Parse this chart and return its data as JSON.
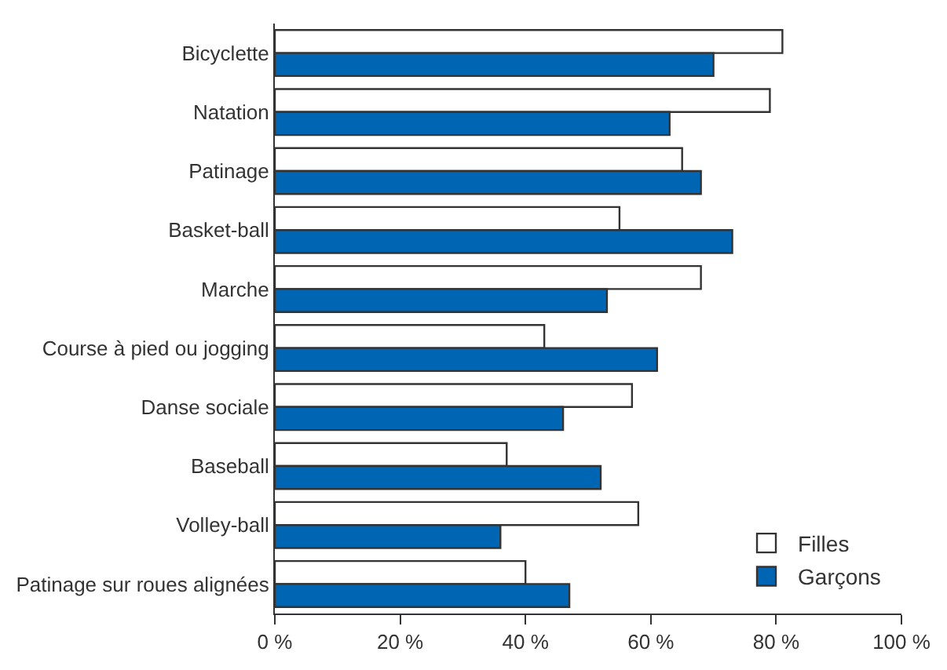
{
  "chart_data": {
    "type": "bar",
    "orientation": "horizontal",
    "categories": [
      "Bicyclette",
      "Natation",
      "Patinage",
      "Basket-ball",
      "Marche",
      "Course à pied ou jogging",
      "Danse sociale",
      "Baseball",
      "Volley-ball",
      "Patinage sur roues alignées"
    ],
    "series": [
      {
        "name": "Filles",
        "color": "#ffffff",
        "values": [
          81,
          79,
          65,
          55,
          68,
          43,
          57,
          37,
          58,
          40
        ]
      },
      {
        "name": "Garçons",
        "color": "#0066b3",
        "values": [
          70,
          63,
          68,
          73,
          53,
          61,
          46,
          52,
          36,
          47
        ]
      }
    ],
    "xlim": [
      0,
      100
    ],
    "xticks": [
      {
        "value": 0,
        "label": "0 %"
      },
      {
        "value": 20,
        "label": "20 %"
      },
      {
        "value": 40,
        "label": "40 %"
      },
      {
        "value": 60,
        "label": "60 %"
      },
      {
        "value": 80,
        "label": "80 %"
      },
      {
        "value": 100,
        "label": "100 %"
      }
    ],
    "grid": false,
    "legend": "bottom right"
  }
}
